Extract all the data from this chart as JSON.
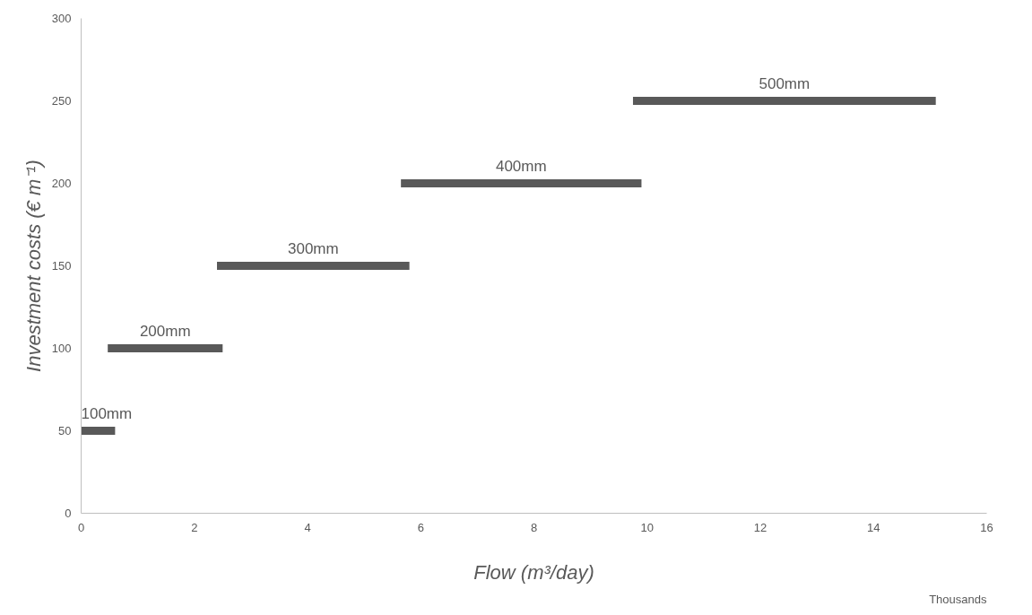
{
  "chart_data": {
    "type": "line",
    "xlabel": "Flow (m³/day)",
    "ylabel": "Investment costs (€ m⁻¹)",
    "xlim": [
      0,
      16
    ],
    "xticks": [
      0,
      2,
      4,
      6,
      8,
      10,
      12,
      14,
      16
    ],
    "ylim": [
      0,
      300
    ],
    "yticks": [
      0,
      50,
      100,
      150,
      200,
      250,
      300
    ],
    "grid": false,
    "marker": "none",
    "line_style": "solid",
    "annotations": [
      "Thousands"
    ],
    "series": [
      {
        "name": "100mm",
        "color": "#595959",
        "x": [
          0,
          0.6
        ],
        "values": [
          50,
          50
        ]
      },
      {
        "name": "200mm",
        "color": "#595959",
        "x": [
          0.47,
          2.5
        ],
        "values": [
          100,
          100
        ]
      },
      {
        "name": "300mm",
        "color": "#595959",
        "x": [
          2.4,
          5.8
        ],
        "values": [
          150,
          150
        ]
      },
      {
        "name": "400mm",
        "color": "#595959",
        "x": [
          5.65,
          9.9
        ],
        "values": [
          200,
          200
        ]
      },
      {
        "name": "500mm",
        "color": "#595959",
        "x": [
          9.75,
          15.1
        ],
        "values": [
          250,
          250
        ]
      }
    ]
  }
}
